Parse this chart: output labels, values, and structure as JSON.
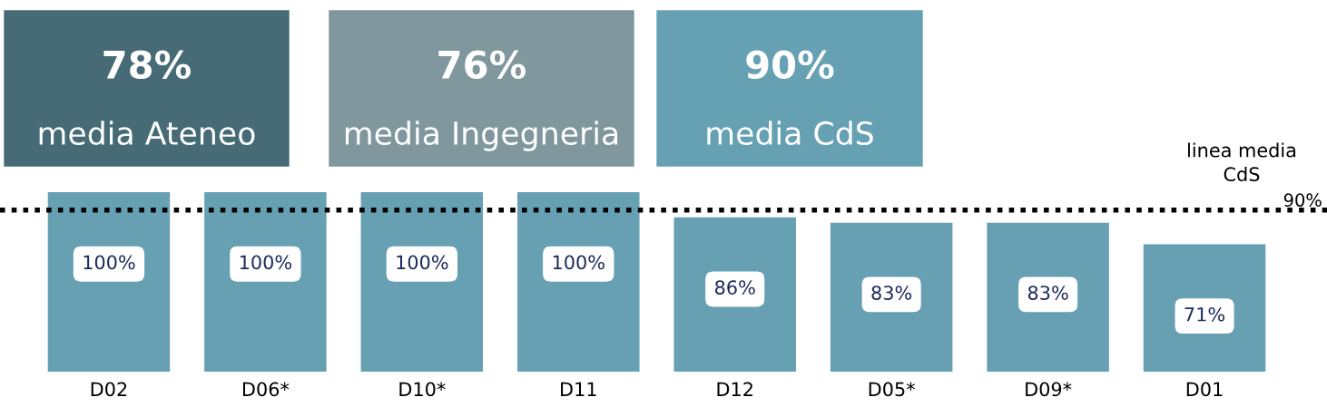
{
  "chart_data": {
    "type": "bar",
    "categories": [
      "D02",
      "D06*",
      "D10*",
      "D11",
      "D12",
      "D05*",
      "D09*",
      "D01"
    ],
    "values": [
      100,
      100,
      100,
      100,
      86,
      83,
      83,
      71
    ],
    "value_labels": [
      "100%",
      "100%",
      "100%",
      "100%",
      "86%",
      "83%",
      "83%",
      "71%"
    ],
    "color": "#66a0b2",
    "ylim": [
      0,
      100
    ],
    "tick_labels": "x",
    "grid": false,
    "ref_lines": [
      {
        "axis": "y",
        "value": 90,
        "label": "linea media\nCdS",
        "color": "#000000",
        "line_style": "dotted"
      }
    ],
    "annotations": [
      "78%",
      "media Ateneo",
      "76%",
      "media Ingegneria",
      "90%",
      "media CdS",
      {
        "text": "90%",
        "y": 90
      }
    ]
  }
}
